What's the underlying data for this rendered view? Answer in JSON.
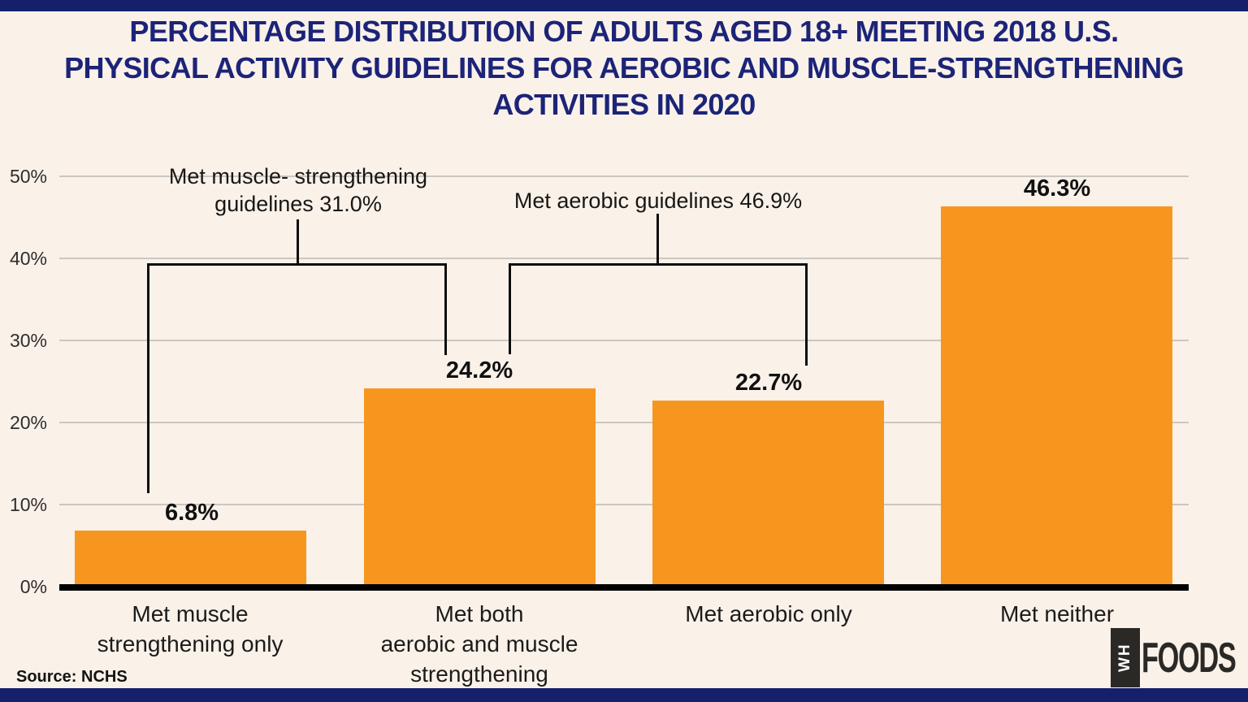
{
  "header": {
    "title_lines": [
      "PERCENTAGE DISTRIBUTION OF ADULTS AGED 18+ MEETING 2018 U.S.",
      "PHYSICAL ACTIVITY GUIDELINES FOR AEROBIC AND MUSCLE-STRENGTHENING",
      "ACTIVITIES IN 2020"
    ]
  },
  "chart_data": {
    "type": "bar",
    "title": "PERCENTAGE DISTRIBUTION OF ADULTS AGED 18+ MEETING 2018 U.S. PHYSICAL ACTIVITY GUIDELINES FOR AEROBIC AND MUSCLE-STRENGTHENING ACTIVITIES IN 2020",
    "categories": [
      "Met muscle strengthening only",
      "Met both aerobic and muscle strengthening",
      "Met aerobic only",
      "Met neither"
    ],
    "categories_display": [
      "Met muscle\nstrengthening only",
      "Met both\naerobic and muscle\nstrengthening",
      "Met aerobic only",
      "Met neither"
    ],
    "values": [
      6.8,
      24.2,
      22.7,
      46.3
    ],
    "value_labels": [
      "6.8%",
      "24.2%",
      "22.7%",
      "46.3%"
    ],
    "xlabel": "",
    "ylabel": "",
    "ylim": [
      0,
      50
    ],
    "yticks": [
      0,
      10,
      20,
      30,
      40,
      50
    ],
    "ytick_labels": [
      "0%",
      "10%",
      "20%",
      "30%",
      "40%",
      "50%"
    ],
    "grid": true,
    "legend": null,
    "bar_color": "#F7961F",
    "annotations": [
      {
        "text": "Met muscle- strengthening guidelines 31.0%",
        "display": "Met muscle- strengthening\nguidelines 31.0%",
        "value": 31.0,
        "covers_categories": [
          "Met muscle strengthening only",
          "Met both aerobic and muscle strengthening"
        ]
      },
      {
        "text": "Met aerobic guidelines 46.9%",
        "display": "Met aerobic guidelines 46.9%",
        "value": 46.9,
        "covers_categories": [
          "Met both aerobic and muscle strengthening",
          "Met aerobic only"
        ]
      }
    ]
  },
  "footer": {
    "source": "Source: NCHS",
    "logo": {
      "vertical_text": "WH",
      "name_text": "FOODS"
    }
  },
  "colors": {
    "background": "#FAF1E9",
    "band_navy": "#15206B",
    "title_navy": "#1C2478",
    "bar_orange": "#F7961F",
    "text_dark": "#1B1B19",
    "gridline": "#CBC7C2",
    "line_black": "#0D0D0D",
    "logo_dark": "#2B2926"
  }
}
